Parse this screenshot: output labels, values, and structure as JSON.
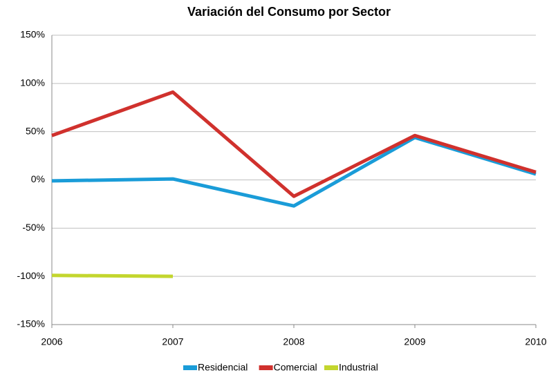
{
  "chart_data": {
    "type": "line",
    "title": "Variación del Consumo por Sector",
    "categories": [
      "2006",
      "2007",
      "2008",
      "2009",
      "2010"
    ],
    "series": [
      {
        "name": "Residencial",
        "color": "#1a9cd8",
        "values": [
          -1,
          1,
          -27,
          44,
          6
        ]
      },
      {
        "name": "Comercial",
        "color": "#d0312d",
        "values": [
          46,
          91,
          -17,
          46,
          8
        ]
      },
      {
        "name": "Industrial",
        "color": "#c3d62e",
        "values": [
          -99,
          -100,
          null,
          null,
          null
        ]
      }
    ],
    "ylim": [
      -150,
      150
    ],
    "yticks": [
      {
        "value": -150,
        "label": "-150%"
      },
      {
        "value": -100,
        "label": "-100%"
      },
      {
        "value": -50,
        "label": "-50%"
      },
      {
        "value": 0,
        "label": "0%"
      },
      {
        "value": 50,
        "label": "50%"
      },
      {
        "value": 100,
        "label": "100%"
      },
      {
        "value": 150,
        "label": "150%"
      }
    ],
    "grid": true,
    "legend": "bottom"
  }
}
